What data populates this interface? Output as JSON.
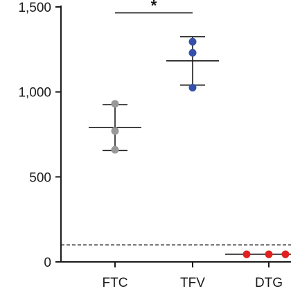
{
  "chart_data": {
    "type": "scatter",
    "title": "",
    "xlabel": "",
    "ylabel": "",
    "ylim": [
      0,
      1500
    ],
    "yticks": [
      0,
      500,
      1000,
      1500
    ],
    "ytick_labels": [
      "0",
      "500",
      "1,000",
      "1,500"
    ],
    "categories": [
      "FTC",
      "TFV",
      "DTG"
    ],
    "series": [
      {
        "category": "FTC",
        "color": "#999999",
        "points": [
          930,
          770,
          660
        ],
        "mean": 790,
        "sd_low": 655,
        "sd_high": 925
      },
      {
        "category": "TFV",
        "color": "#3450a8",
        "points": [
          1295,
          1230,
          1025
        ],
        "mean": 1183,
        "sd_low": 1040,
        "sd_high": 1325
      },
      {
        "category": "DTG",
        "color": "#e02020",
        "points": [
          45,
          45,
          45
        ],
        "mean": 45,
        "sd_low": 45,
        "sd_high": 45
      }
    ],
    "reference_line": {
      "value": 100,
      "style": "dashed"
    },
    "significance": {
      "between": [
        "FTC",
        "TFV"
      ],
      "label": "*",
      "y": 1465
    },
    "grid": false,
    "legend": "none"
  }
}
